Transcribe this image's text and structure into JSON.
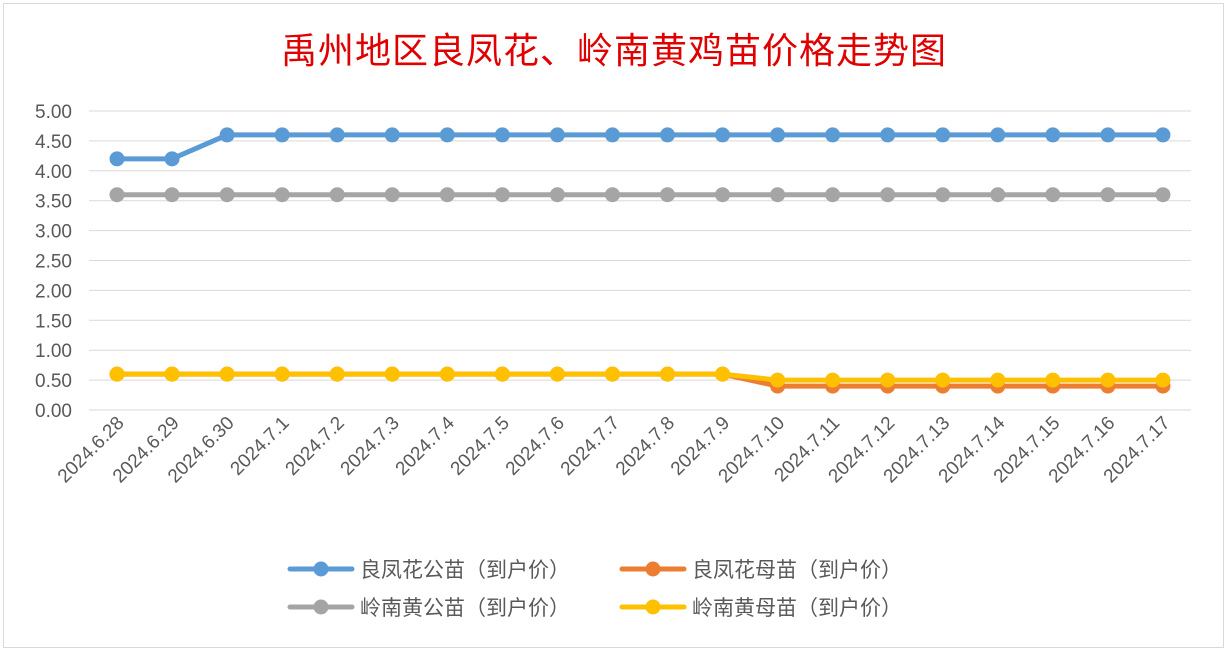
{
  "chart_data": {
    "type": "line",
    "title": "禹州地区良凤花、岭南黄鸡苗价格走势图",
    "categories": [
      "2024.6.28",
      "2024.6.29",
      "2024.6.30",
      "2024.7.1",
      "2024.7.2",
      "2024.7.3",
      "2024.7.4",
      "2024.7.5",
      "2024.7.6",
      "2024.7.7",
      "2024.7.8",
      "2024.7.9",
      "2024.7.10",
      "2024.7.11",
      "2024.7.12",
      "2024.7.13",
      "2024.7.14",
      "2024.7.15",
      "2024.7.16",
      "2024.7.17"
    ],
    "ylim": [
      0,
      5
    ],
    "yticks": [
      "0.00",
      "0.50",
      "1.00",
      "1.50",
      "2.00",
      "2.50",
      "3.00",
      "3.50",
      "4.00",
      "4.50",
      "5.00"
    ],
    "grid": true,
    "legend_position": "bottom",
    "series": [
      {
        "name": "良凤花公苗（到户价）",
        "color": "#5b9bd5",
        "values": [
          4.2,
          4.2,
          4.6,
          4.6,
          4.6,
          4.6,
          4.6,
          4.6,
          4.6,
          4.6,
          4.6,
          4.6,
          4.6,
          4.6,
          4.6,
          4.6,
          4.6,
          4.6,
          4.6,
          4.6
        ]
      },
      {
        "name": "良凤花母苗（到户价）",
        "color": "#ed7d31",
        "values": [
          0.6,
          0.6,
          0.6,
          0.6,
          0.6,
          0.6,
          0.6,
          0.6,
          0.6,
          0.6,
          0.6,
          0.6,
          0.4,
          0.4,
          0.4,
          0.4,
          0.4,
          0.4,
          0.4,
          0.4
        ]
      },
      {
        "name": "岭南黄公苗（到户价）",
        "color": "#a5a5a5",
        "values": [
          3.6,
          3.6,
          3.6,
          3.6,
          3.6,
          3.6,
          3.6,
          3.6,
          3.6,
          3.6,
          3.6,
          3.6,
          3.6,
          3.6,
          3.6,
          3.6,
          3.6,
          3.6,
          3.6,
          3.6
        ]
      },
      {
        "name": "岭南黄母苗（到户价）",
        "color": "#ffc000",
        "values": [
          0.6,
          0.6,
          0.6,
          0.6,
          0.6,
          0.6,
          0.6,
          0.6,
          0.6,
          0.6,
          0.6,
          0.6,
          0.5,
          0.5,
          0.5,
          0.5,
          0.5,
          0.5,
          0.5,
          0.5
        ]
      }
    ]
  }
}
